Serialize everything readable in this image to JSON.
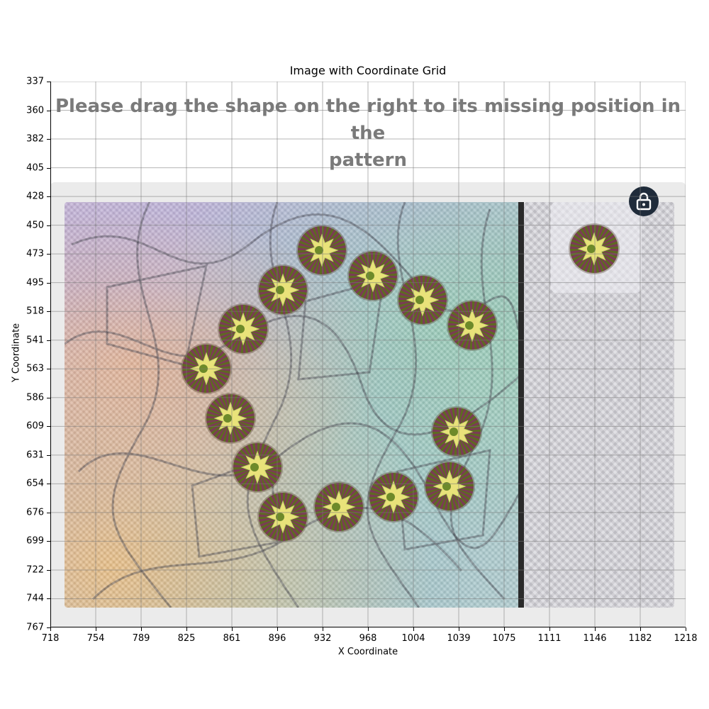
{
  "chart": {
    "title": "Image with Coordinate Grid",
    "xlabel": "X Coordinate",
    "ylabel": "Y Coordinate",
    "xlim": [
      718,
      1218
    ],
    "ylim": [
      767,
      337
    ],
    "x_ticks": [
      "718",
      "754",
      "789",
      "825",
      "861",
      "896",
      "932",
      "968",
      "1004",
      "1039",
      "1075",
      "1111",
      "1146",
      "1182",
      "1218"
    ],
    "y_ticks": [
      "337",
      "360",
      "382",
      "405",
      "428",
      "450",
      "473",
      "495",
      "518",
      "541",
      "563",
      "586",
      "609",
      "631",
      "654",
      "676",
      "699",
      "722",
      "744",
      "767"
    ],
    "grid": true
  },
  "captcha": {
    "instruction_line1": "Please drag the shape on the right to its missing position in the",
    "instruction_line2": "pattern",
    "lock_icon": "lock-icon",
    "pattern_shapes": [
      {
        "x": 932,
        "y": 470
      },
      {
        "x": 972,
        "y": 490
      },
      {
        "x": 1011,
        "y": 509
      },
      {
        "x": 1050,
        "y": 529
      },
      {
        "x": 901,
        "y": 501
      },
      {
        "x": 870,
        "y": 532
      },
      {
        "x": 841,
        "y": 563
      },
      {
        "x": 860,
        "y": 602
      },
      {
        "x": 881,
        "y": 641
      },
      {
        "x": 901,
        "y": 680
      },
      {
        "x": 945,
        "y": 672
      },
      {
        "x": 988,
        "y": 664
      },
      {
        "x": 1032,
        "y": 656
      },
      {
        "x": 1038,
        "y": 613
      }
    ],
    "draggable_shape": {
      "x": 1146,
      "y": 469
    }
  }
}
